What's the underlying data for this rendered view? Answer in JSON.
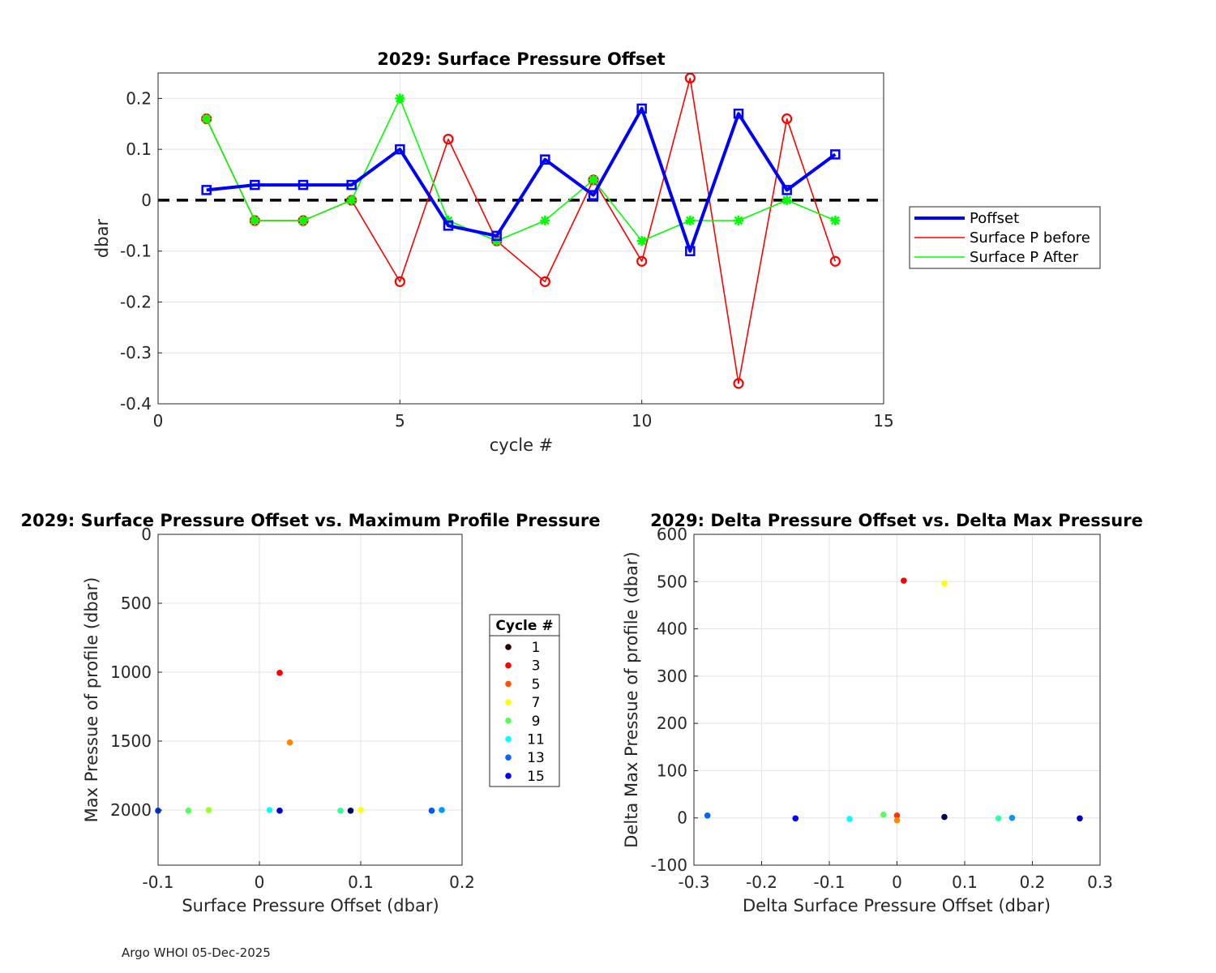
{
  "footer": "Argo WHOI 05-Dec-2025",
  "chart_data": [
    {
      "type": "line",
      "title": "2029: Surface Pressure Offset",
      "xlabel": "cycle #",
      "ylabel": "dbar",
      "xlim": [
        0,
        15
      ],
      "ylim": [
        -0.4,
        0.25
      ],
      "xticks": [
        0,
        5,
        10,
        15
      ],
      "yticks": [
        -0.4,
        -0.3,
        -0.2,
        -0.1,
        0,
        0.1,
        0.2
      ],
      "ytick_labels": [
        "-0.4",
        "-0.3",
        "-0.2",
        "-0.1",
        "0",
        "0.1",
        "0.2"
      ],
      "grid": true,
      "legend_position": "outside-right",
      "reference_line": {
        "y": 0,
        "style": "dashed",
        "color": "#000000"
      },
      "series": [
        {
          "name": "Poffset",
          "color": "#0000ff",
          "marker": "square",
          "x": [
            1,
            2,
            3,
            4,
            5,
            6,
            7,
            8,
            9,
            10,
            11,
            12,
            13,
            14
          ],
          "y": [
            0.02,
            0.03,
            0.03,
            0.03,
            0.1,
            -0.05,
            -0.07,
            0.08,
            0.01,
            0.18,
            -0.1,
            0.17,
            0.02,
            0.09
          ]
        },
        {
          "name": "Surface P before",
          "color": "#ff0000",
          "marker": "circle",
          "x": [
            1,
            2,
            3,
            4,
            5,
            6,
            7,
            8,
            9,
            10,
            11,
            12,
            13,
            14
          ],
          "y": [
            0.16,
            -0.04,
            -0.04,
            0.0,
            -0.16,
            0.12,
            -0.08,
            -0.16,
            0.04,
            -0.12,
            0.24,
            -0.36,
            0.16,
            -0.12
          ]
        },
        {
          "name": "Surface P After",
          "color": "#00ff00",
          "marker": "star",
          "x": [
            1,
            2,
            3,
            4,
            5,
            6,
            7,
            8,
            9,
            10,
            11,
            12,
            13,
            14
          ],
          "y": [
            0.16,
            -0.04,
            -0.04,
            0.0,
            0.2,
            -0.04,
            -0.08,
            -0.04,
            0.04,
            -0.08,
            -0.04,
            -0.04,
            0.0,
            -0.04
          ]
        }
      ]
    },
    {
      "type": "scatter",
      "title": "2029: Surface Pressure Offset vs. Maximum Profile Pressure",
      "xlabel": "Surface Pressure Offset (dbar)",
      "ylabel": "Max Pressue of profile (dbar)",
      "xlim": [
        -0.1,
        0.2
      ],
      "ylim": [
        0,
        2400
      ],
      "y_reversed": true,
      "xticks": [
        -0.1,
        0,
        0.1,
        0.2
      ],
      "xtick_labels": [
        "-0.1",
        "0",
        "0.1",
        "0.2"
      ],
      "yticks": [
        0,
        500,
        1000,
        1500,
        2000
      ],
      "ytick_labels": [
        "0",
        "500",
        "1000",
        "1500",
        "2000"
      ],
      "grid": true,
      "legend": {
        "title": "Cycle #",
        "entries": [
          {
            "label": "1",
            "color": "#2a0000"
          },
          {
            "label": "3",
            "color": "#ff0000"
          },
          {
            "label": "5",
            "color": "#ff5500"
          },
          {
            "label": "7",
            "color": "#ffff00"
          },
          {
            "label": "9",
            "color": "#55ff55"
          },
          {
            "label": "11",
            "color": "#00ffff"
          },
          {
            "label": "13",
            "color": "#0066ff"
          },
          {
            "label": "15",
            "color": "#0000ff"
          }
        ]
      },
      "points": [
        {
          "x": -0.1,
          "y": 2005,
          "color": "#0033ff"
        },
        {
          "x": -0.07,
          "y": 2005,
          "color": "#55ff55"
        },
        {
          "x": -0.05,
          "y": 2000,
          "color": "#99ff33"
        },
        {
          "x": 0.01,
          "y": 2000,
          "color": "#00ffff"
        },
        {
          "x": 0.02,
          "y": 2005,
          "color": "#0000cc"
        },
        {
          "x": 0.02,
          "y": 1005,
          "color": "#ff0000"
        },
        {
          "x": 0.03,
          "y": 1510,
          "color": "#ff8800"
        },
        {
          "x": 0.08,
          "y": 2005,
          "color": "#33ff99"
        },
        {
          "x": 0.09,
          "y": 2005,
          "color": "#000066"
        },
        {
          "x": 0.1,
          "y": 2000,
          "color": "#ffff00"
        },
        {
          "x": 0.17,
          "y": 2005,
          "color": "#0055ff"
        },
        {
          "x": 0.18,
          "y": 2000,
          "color": "#0099ff"
        }
      ]
    },
    {
      "type": "scatter",
      "title": "2029: Delta Pressure Offset vs. Delta Max Pressure",
      "xlabel": "Delta Surface Pressure Offset (dbar)",
      "ylabel": "Delta Max Pressue of profile (dbar)",
      "xlim": [
        -0.3,
        0.3
      ],
      "ylim": [
        -100,
        600
      ],
      "xticks": [
        -0.3,
        -0.2,
        -0.1,
        0,
        0.1,
        0.2,
        0.3
      ],
      "xtick_labels": [
        "-0.3",
        "-0.2",
        "-0.1",
        "0",
        "0.1",
        "0.2",
        "0.3"
      ],
      "yticks": [
        -100,
        0,
        100,
        200,
        300,
        400,
        500,
        600
      ],
      "ytick_labels": [
        "-100",
        "0",
        "100",
        "200",
        "300",
        "400",
        "500",
        "600"
      ],
      "grid": true,
      "points": [
        {
          "x": -0.28,
          "y": 5,
          "color": "#0066ff"
        },
        {
          "x": -0.15,
          "y": -1,
          "color": "#0000ff"
        },
        {
          "x": -0.07,
          "y": -2,
          "color": "#00ffff"
        },
        {
          "x": -0.02,
          "y": 7,
          "color": "#55ff55"
        },
        {
          "x": 0.0,
          "y": 5,
          "color": "#ff3300"
        },
        {
          "x": 0.0,
          "y": -5,
          "color": "#ff8800"
        },
        {
          "x": 0.01,
          "y": 502,
          "color": "#ff0000"
        },
        {
          "x": 0.07,
          "y": 496,
          "color": "#ffff00"
        },
        {
          "x": 0.07,
          "y": 2,
          "color": "#000055"
        },
        {
          "x": 0.15,
          "y": -1,
          "color": "#33ffaa"
        },
        {
          "x": 0.17,
          "y": 0,
          "color": "#0099ff"
        },
        {
          "x": 0.27,
          "y": -1,
          "color": "#0000cc"
        }
      ]
    }
  ]
}
